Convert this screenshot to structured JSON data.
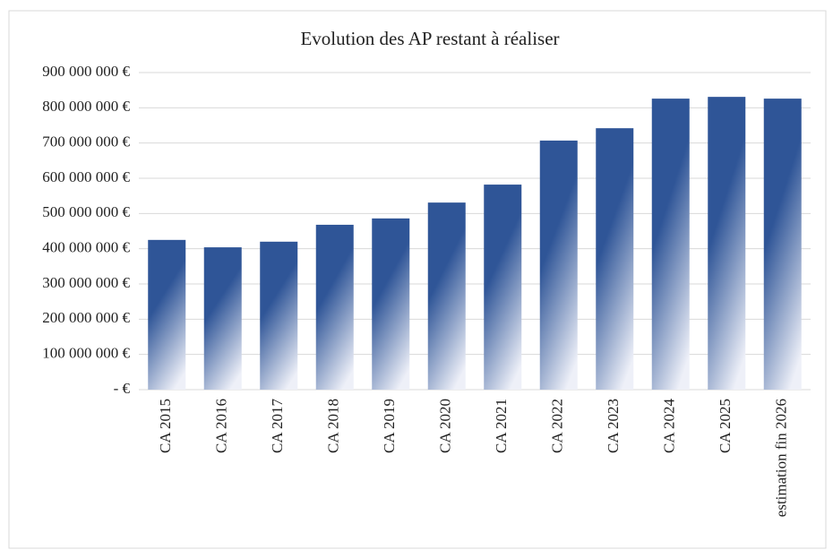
{
  "chart_data": {
    "type": "bar",
    "title": "Evolution des AP restant à réaliser",
    "categories": [
      "CA 2015",
      "CA 2016",
      "CA 2017",
      "CA 2018",
      "CA 2019",
      "CA 2020",
      "CA 2021",
      "CA 2022",
      "CA 2023",
      "CA 2024",
      "CA 2025",
      "estimation fin 2026"
    ],
    "values": [
      425000000,
      404000000,
      420000000,
      468000000,
      486000000,
      531000000,
      582000000,
      707000000,
      742000000,
      826000000,
      831000000,
      826000000
    ],
    "color": "#2f5597",
    "ylim": [
      0,
      900000000
    ],
    "yticks": [
      {
        "value": 0,
        "label": "-  €"
      },
      {
        "value": 100000000,
        "label": "100 000 000 €"
      },
      {
        "value": 200000000,
        "label": "200 000 000 €"
      },
      {
        "value": 300000000,
        "label": "300 000 000 €"
      },
      {
        "value": 400000000,
        "label": "400 000 000 €"
      },
      {
        "value": 500000000,
        "label": "500 000 000 €"
      },
      {
        "value": 600000000,
        "label": "600 000 000 €"
      },
      {
        "value": 700000000,
        "label": "700 000 000 €"
      },
      {
        "value": 800000000,
        "label": "800 000 000 €"
      },
      {
        "value": 900000000,
        "label": "900 000 000 €"
      }
    ],
    "grid": true
  }
}
